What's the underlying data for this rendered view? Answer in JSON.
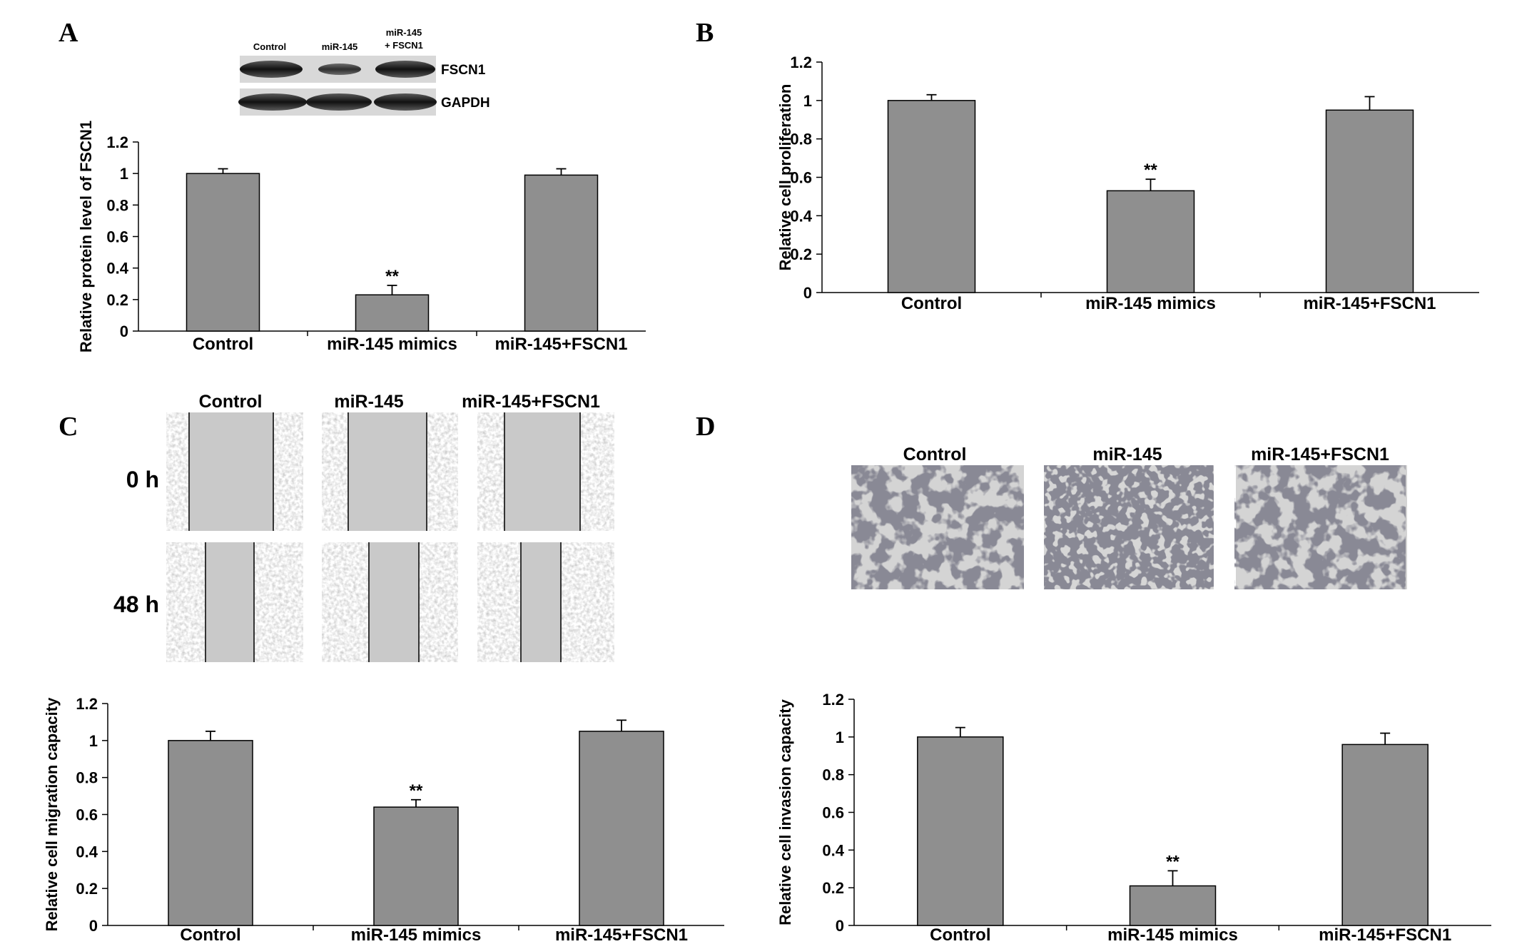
{
  "colors": {
    "bar": "#8f8f8f",
    "axis": "#000000",
    "background": "#ffffff"
  },
  "panels": {
    "A": {
      "letter": "A",
      "blot": {
        "columns": [
          "Control",
          "miR-145",
          "miR-145",
          "+ FSCN1"
        ],
        "rows": [
          "FSCN1",
          "GAPDH"
        ]
      }
    },
    "B": {
      "letter": "B"
    },
    "C": {
      "letter": "C",
      "columns": [
        "Control",
        "miR-145",
        "miR-145+FSCN1"
      ],
      "rows": [
        "0 h",
        "48 h"
      ]
    },
    "D": {
      "letter": "D",
      "columns": [
        "Control",
        "miR-145",
        "miR-145+FSCN1"
      ]
    }
  },
  "chart_data": [
    {
      "id": "A",
      "type": "bar",
      "categories": [
        "Control",
        "miR-145 mimics",
        "miR-145+FSCN1"
      ],
      "values": [
        1.0,
        0.23,
        0.99
      ],
      "errors": [
        0.03,
        0.06,
        0.04
      ],
      "significance": [
        "",
        "**",
        ""
      ],
      "ylabel": "Relative protein level of FSCN1",
      "ylim": [
        0,
        1.2
      ],
      "yticks": [
        "0",
        "0.2",
        "0.4",
        "0.6",
        "0.8",
        "1",
        "1.2"
      ]
    },
    {
      "id": "B",
      "type": "bar",
      "categories": [
        "Control",
        "miR-145 mimics",
        "miR-145+FSCN1"
      ],
      "values": [
        1.0,
        0.53,
        0.95
      ],
      "errors": [
        0.03,
        0.06,
        0.07
      ],
      "significance": [
        "",
        "**",
        ""
      ],
      "ylabel": "Relative cell proliferation",
      "ylim": [
        0,
        1.2
      ],
      "yticks": [
        "0",
        "0.2",
        "0.4",
        "0.6",
        "0.8",
        "1",
        "1.2"
      ]
    },
    {
      "id": "C",
      "type": "bar",
      "categories": [
        "Control",
        "miR-145 mimics",
        "miR-145+FSCN1"
      ],
      "values": [
        1.0,
        0.64,
        1.05
      ],
      "errors": [
        0.05,
        0.04,
        0.06
      ],
      "significance": [
        "",
        "**",
        ""
      ],
      "ylabel": "Relative cell migration capacity",
      "ylim": [
        0,
        1.2
      ],
      "yticks": [
        "0",
        "0.2",
        "0.4",
        "0.6",
        "0.8",
        "1",
        "1.2"
      ]
    },
    {
      "id": "D",
      "type": "bar",
      "categories": [
        "Control",
        "miR-145 mimics",
        "miR-145+FSCN1"
      ],
      "values": [
        1.0,
        0.21,
        0.96
      ],
      "errors": [
        0.05,
        0.08,
        0.06
      ],
      "significance": [
        "",
        "**",
        ""
      ],
      "ylabel": "Relative cell invasion capacity",
      "ylim": [
        0,
        1.2
      ],
      "yticks": [
        "0",
        "0.2",
        "0.4",
        "0.6",
        "0.8",
        "1",
        "1.2"
      ]
    }
  ]
}
